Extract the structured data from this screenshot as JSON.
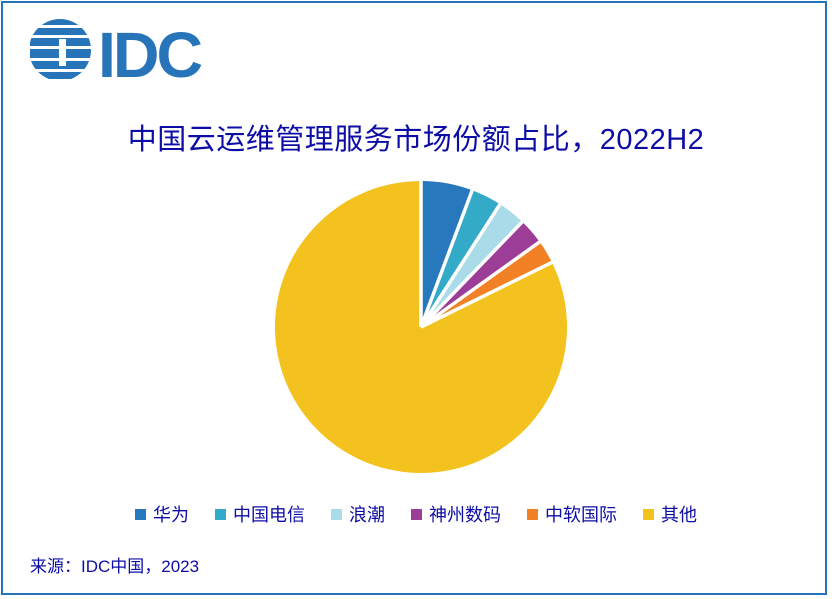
{
  "brand": {
    "logo_text": "IDC",
    "logo_color": "#2874B8",
    "border_color": "#2874B8"
  },
  "title": {
    "text": "中国云运维管理服务市场份额占比，2022H2",
    "color": "#0D0DA6"
  },
  "chart_data": {
    "type": "pie",
    "title": "中国云运维管理服务市场份额占比，2022H2",
    "start_angle_deg": 0,
    "direction": "clockwise",
    "values_are_percent": true,
    "legend_position": "bottom",
    "slices": [
      {
        "label": "华为",
        "value": 5.7,
        "color": "#2878BE"
      },
      {
        "label": "中国电信",
        "value": 3.4,
        "color": "#32AAC8"
      },
      {
        "label": "浪潮",
        "value": 3.1,
        "color": "#A9DBE9"
      },
      {
        "label": "神州数码",
        "value": 2.9,
        "color": "#9C3D98"
      },
      {
        "label": "中软国际",
        "value": 2.6,
        "color": "#F28024"
      },
      {
        "label": "其他",
        "value": 82.3,
        "color": "#F4C21E"
      }
    ]
  },
  "source": {
    "text": "来源：IDC中国，2023"
  }
}
